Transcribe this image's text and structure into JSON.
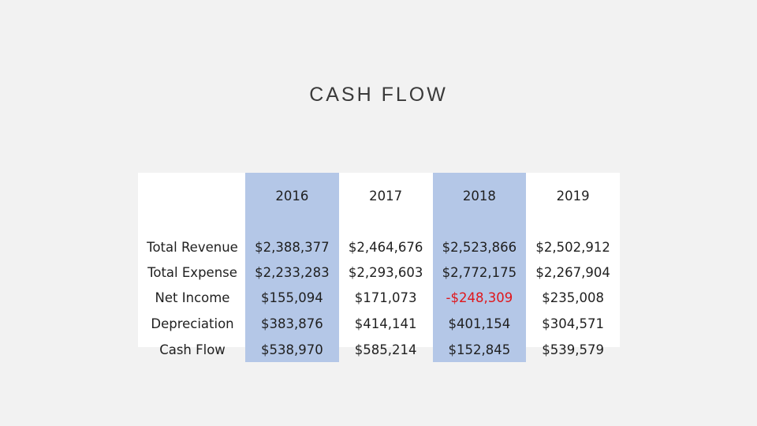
{
  "title": "CASH FLOW",
  "table": {
    "columns": [
      "",
      "2016",
      "2017",
      "2018",
      "2019"
    ],
    "rows": [
      {
        "label": "Total Revenue",
        "values": [
          "$2,388,377",
          "$2,464,676",
          "$2,523,866",
          "$2,502,912"
        ]
      },
      {
        "label": "Total Expense",
        "values": [
          "$2,233,283",
          "$2,293,603",
          "$2,772,175",
          "$2,267,904"
        ]
      },
      {
        "label": "Net Income",
        "values": [
          "$155,094",
          "$171,073",
          "-$248,309",
          "$235,008"
        ]
      },
      {
        "label": "Depreciation",
        "values": [
          "$383,876",
          "$414,141",
          "$401,154",
          "$304,571"
        ]
      },
      {
        "label": "Cash Flow",
        "values": [
          "$538,970",
          "$585,214",
          "$152,845",
          "$539,579"
        ]
      }
    ]
  },
  "colors": {
    "background": "#f2f2f2",
    "table_background": "#ffffff",
    "highlight_column": "#b4c7e7",
    "negative_value": "#e0161b",
    "title_text": "#3a3a3a"
  }
}
